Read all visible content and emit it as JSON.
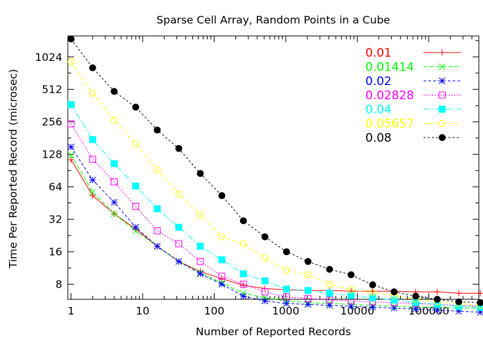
{
  "chart_data": {
    "type": "line",
    "title": "Sparse Cell Array, Random Points in a Cube",
    "xlabel": "Number of Reported Records",
    "ylabel": "Time Per Reported Record (microsec)",
    "x_scale": "log10",
    "y_scale": "log2",
    "xlim": [
      0.9,
      500000
    ],
    "ylim": [
      5.8,
      1600
    ],
    "x_ticks": [
      1,
      10,
      100,
      1000,
      10000,
      100000
    ],
    "x_tick_labels": [
      "1",
      "10",
      "100",
      "1000",
      "10000",
      "100000"
    ],
    "y_ticks": [
      8,
      16,
      32,
      64,
      128,
      256,
      512,
      1024
    ],
    "y_tick_labels": [
      "8",
      "16",
      "32",
      "64",
      "128",
      "256",
      "512",
      "1024"
    ],
    "legend_position": "top-right",
    "x": [
      1,
      2,
      4,
      8,
      16,
      32,
      64,
      128,
      256,
      512,
      1024,
      2048,
      4096,
      8192,
      16384,
      32768,
      65536,
      131072,
      262144,
      524288
    ],
    "series": [
      {
        "name": "0.01",
        "color": "#ff0000",
        "marker": "plus",
        "dash": "",
        "values": [
          114,
          53,
          36,
          26,
          18,
          13,
          10.5,
          9.0,
          7.8,
          7.3,
          7.1,
          7.0,
          7.0,
          6.9,
          6.9,
          6.9,
          6.8,
          6.8,
          6.6,
          6.6
        ]
      },
      {
        "name": "0.01414",
        "color": "#00ff00",
        "marker": "x",
        "dash": "6,3",
        "values": [
          126,
          57,
          36,
          25,
          18,
          13,
          10.2,
          8.2,
          6.6,
          6.0,
          5.6,
          5.4,
          5.3,
          5.2,
          5.1,
          5.0,
          4.9,
          4.9,
          4.8,
          4.8
        ]
      },
      {
        "name": "0.02",
        "color": "#0000ff",
        "marker": "star",
        "dash": "4,3",
        "values": [
          150,
          74,
          46,
          27,
          18,
          13,
          10,
          8.0,
          6.2,
          5.6,
          5.3,
          5.2,
          5.1,
          5.0,
          4.9,
          4.8,
          4.7,
          4.6,
          4.5,
          4.4
        ]
      },
      {
        "name": "0.02828",
        "color": "#ff00ff",
        "marker": "square",
        "dash": "2,2",
        "values": [
          245,
          115,
          71,
          42,
          25,
          19,
          13,
          9.5,
          8.0,
          6.8,
          6.1,
          5.9,
          5.7,
          5.6,
          5.5,
          5.4,
          5.3,
          5.2,
          5.1,
          5.0
        ]
      },
      {
        "name": "0.04",
        "color": "#00ffff",
        "marker": "filled-square",
        "dash": "8,3,2,3",
        "values": [
          370,
          175,
          105,
          65,
          40,
          27,
          18,
          13.5,
          10,
          8.6,
          7.2,
          7.0,
          6.6,
          6.3,
          6.0,
          5.7,
          5.4,
          5.2,
          5.0,
          4.9
        ]
      },
      {
        "name": "0.05657",
        "color": "#ffff00",
        "marker": "circle",
        "dash": "5,4",
        "values": [
          920,
          470,
          265,
          160,
          92,
          55,
          35,
          22,
          19,
          14,
          10.8,
          9.8,
          8.0,
          7.1,
          6.7,
          6.3,
          5.8,
          5.5,
          5.3,
          5.1
        ]
      },
      {
        "name": "0.08",
        "color": "#000000",
        "marker": "filled-circle",
        "dash": "3,3",
        "values": [
          1500,
          810,
          490,
          350,
          215,
          145,
          85,
          53,
          31,
          22,
          16,
          13,
          11,
          9.8,
          7.9,
          6.8,
          6.2,
          5.8,
          5.5,
          5.4
        ]
      }
    ]
  }
}
